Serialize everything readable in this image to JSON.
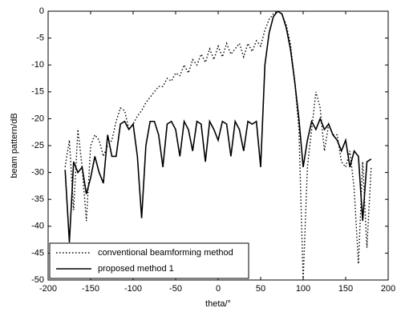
{
  "chart_data": {
    "type": "line",
    "xlabel": "theta/°",
    "ylabel": "beam pattern/dB",
    "x": [
      -180,
      -175,
      -170,
      -165,
      -160,
      -155,
      -150,
      -145,
      -140,
      -135,
      -130,
      -125,
      -120,
      -115,
      -110,
      -105,
      -100,
      -95,
      -90,
      -85,
      -80,
      -75,
      -70,
      -65,
      -60,
      -55,
      -50,
      -45,
      -40,
      -35,
      -30,
      -25,
      -20,
      -15,
      -10,
      -5,
      0,
      5,
      10,
      15,
      20,
      25,
      30,
      35,
      40,
      45,
      50,
      55,
      60,
      65,
      70,
      75,
      80,
      85,
      90,
      95,
      100,
      105,
      110,
      115,
      120,
      125,
      130,
      135,
      140,
      145,
      150,
      155,
      160,
      165,
      170,
      175,
      180
    ],
    "series": [
      {
        "name": "conventional beamforming method",
        "color": "#000000",
        "dash": "dotted",
        "values": [
          -29,
          -24,
          -37,
          -22,
          -29,
          -39,
          -25,
          -23,
          -24,
          -27,
          -25,
          -24,
          -20.5,
          -18,
          -18.5,
          -22,
          -21,
          -19.5,
          -18.5,
          -17,
          -16,
          -15,
          -14,
          -14,
          -12.5,
          -13,
          -11.5,
          -12,
          -10,
          -11.5,
          -9,
          -10,
          -8,
          -9.5,
          -7,
          -9,
          -6.5,
          -8.5,
          -6,
          -8,
          -7,
          -6,
          -8.5,
          -6,
          -7.5,
          -5.5,
          -6.5,
          -3.5,
          -1.5,
          -0.5,
          0,
          -0.5,
          -2.5,
          -6,
          -13,
          -22,
          -50,
          -29,
          -22,
          -15,
          -18,
          -26,
          -21,
          -23,
          -23,
          -28,
          -29,
          -26,
          -33,
          -47,
          -28,
          -44,
          -29
        ]
      },
      {
        "name": "proposed method 1",
        "color": "#000000",
        "dash": "solid",
        "values": [
          -29.5,
          -43,
          -28,
          -30,
          -29,
          -34,
          -31,
          -27,
          -30,
          -32,
          -23,
          -27,
          -27,
          -21,
          -20.5,
          -22,
          -21,
          -27,
          -38.5,
          -25,
          -20.5,
          -20.5,
          -23,
          -29,
          -21,
          -20.5,
          -22,
          -27,
          -20.5,
          -22,
          -26,
          -20.5,
          -21,
          -28,
          -20.5,
          -22,
          -24,
          -20.5,
          -21,
          -27,
          -20.5,
          -22,
          -26,
          -20.5,
          -21,
          -20.5,
          -29,
          -10,
          -4,
          -1,
          0,
          -0.5,
          -3,
          -7,
          -13,
          -20,
          -29,
          -24,
          -20.5,
          -22,
          -20,
          -22,
          -21,
          -23,
          -24,
          -26,
          -24,
          -29,
          -26,
          -27,
          -39,
          -28,
          -27.5
        ]
      }
    ],
    "xlim": [
      -200,
      200
    ],
    "xticks": [
      -200,
      -150,
      -100,
      -50,
      0,
      50,
      100,
      150,
      200
    ],
    "ylim": [
      -50,
      0
    ],
    "yticks": [
      -50,
      -45,
      -40,
      -35,
      -30,
      -25,
      -20,
      -15,
      -10,
      -5,
      0
    ],
    "grid": false,
    "legend": "lower left"
  }
}
